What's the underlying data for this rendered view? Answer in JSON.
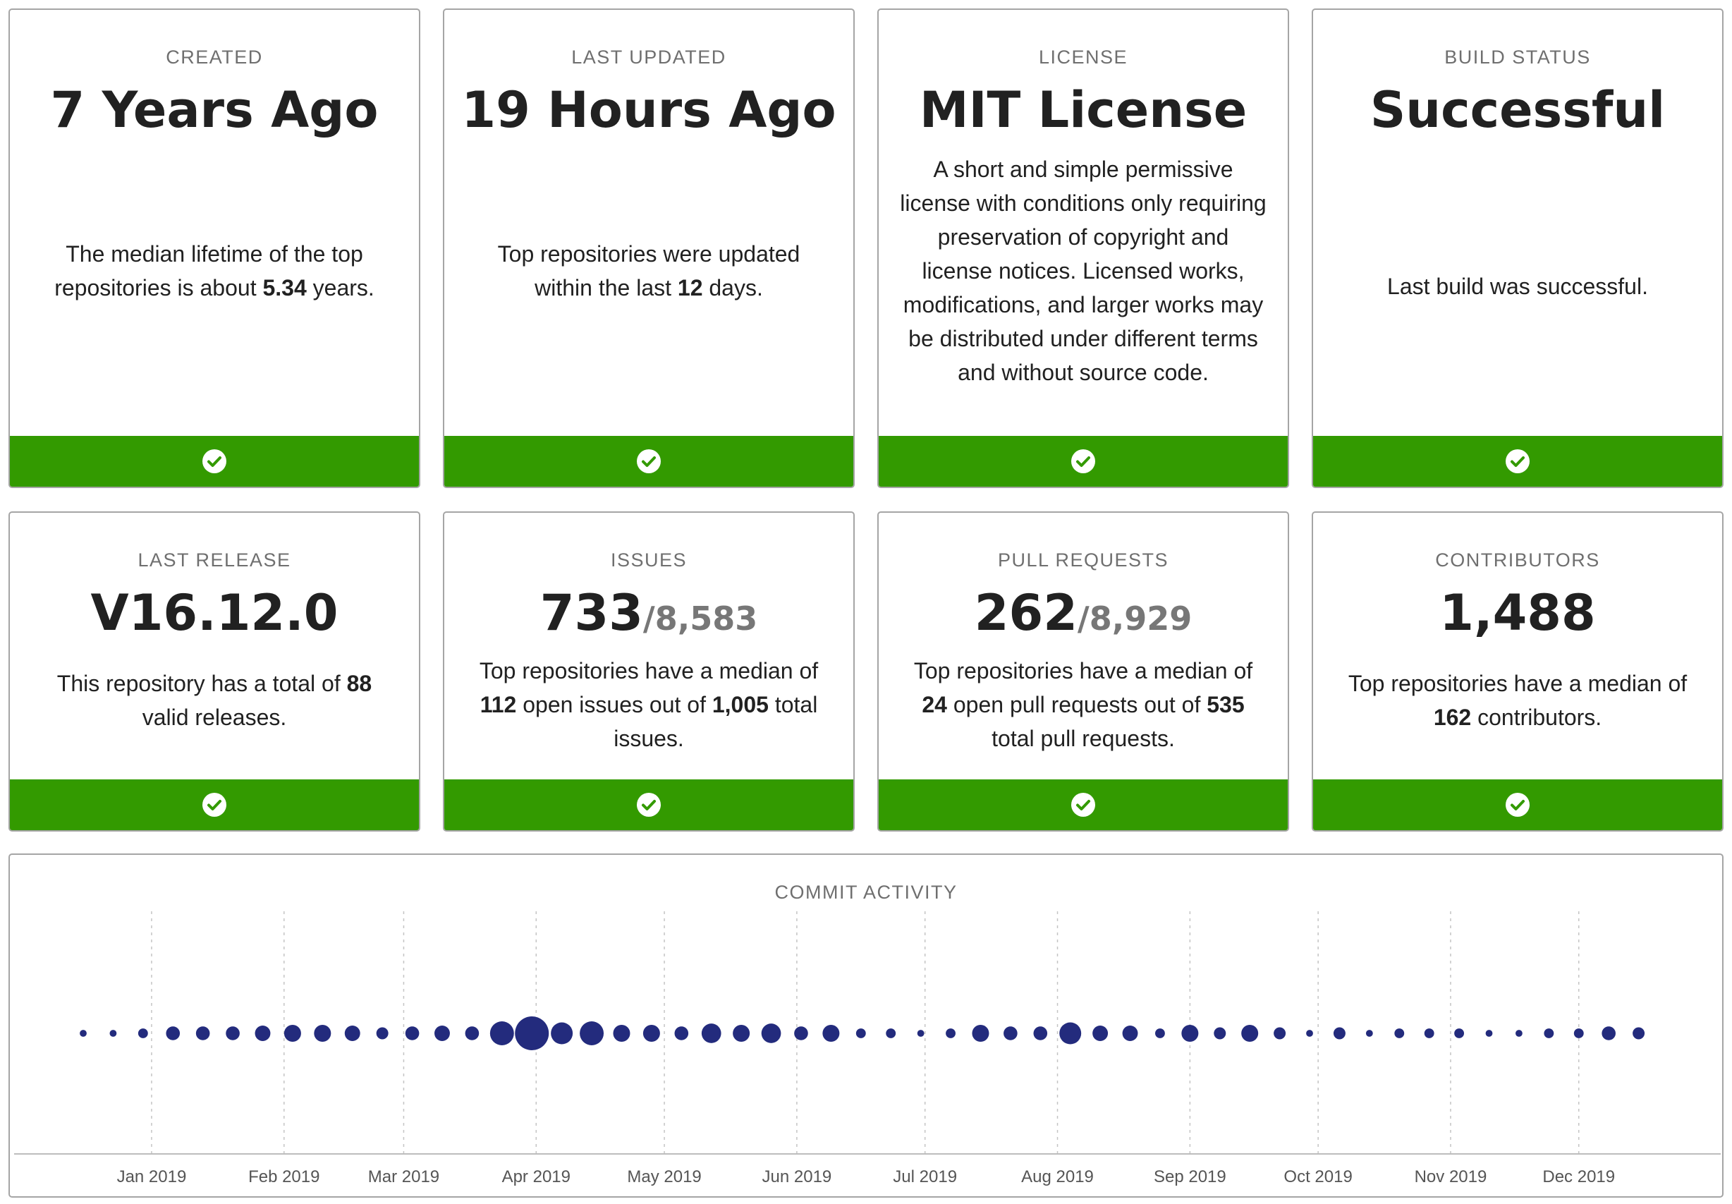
{
  "cards": [
    {
      "label": "CREATED",
      "value": "7 Years Ago",
      "desc": [
        "The median lifetime of the top repositories is about ",
        "5.34",
        " years."
      ],
      "status_icon": "check-circle-icon"
    },
    {
      "label": "LAST UPDATED",
      "value": "19 Hours Ago",
      "desc": [
        "Top repositories were updated within the last ",
        "12",
        " days."
      ],
      "status_icon": "check-circle-icon"
    },
    {
      "label": "LICENSE",
      "value": "MIT License",
      "desc": [
        "A short and simple permissive license with conditions only requiring preservation of copyright and license notices. Licensed works, modifications, and larger works may be distributed under different terms and without source code."
      ],
      "status_icon": "check-circle-icon"
    },
    {
      "label": "BUILD STATUS",
      "value": "Successful",
      "desc": [
        "Last build was successful."
      ],
      "status_icon": "check-circle-icon"
    },
    {
      "label": "LAST RELEASE",
      "value": "V16.12.0",
      "desc": [
        "This repository has a total of ",
        "88",
        " valid releases."
      ],
      "status_icon": "check-circle-icon"
    },
    {
      "label": "ISSUES",
      "value": "733",
      "total": "/8,583",
      "desc": [
        "Top repositories have a median of ",
        "112",
        " open issues out of ",
        "1,005",
        " total issues."
      ],
      "status_icon": "check-circle-icon"
    },
    {
      "label": "PULL REQUESTS",
      "value": "262",
      "total": "/8,929",
      "desc": [
        "Top repositories have a median of ",
        "24",
        " open pull requests out of ",
        "535",
        " total pull requests."
      ],
      "status_icon": "check-circle-icon"
    },
    {
      "label": "CONTRIBUTORS",
      "value": "1,488",
      "desc": [
        "Top repositories have a median of ",
        "162",
        " contributors."
      ],
      "status_icon": "check-circle-icon"
    }
  ],
  "colors": {
    "success": "#339a00",
    "dot": "#232b7d",
    "border": "#a5a5a5"
  },
  "commit_activity": {
    "title": "COMMIT ACTIVITY",
    "chart_data": {
      "type": "scatter",
      "title": "COMMIT ACTIVITY",
      "xlabel": "",
      "ylabel": "",
      "x_unit": "week",
      "x_start": "2018-12-16",
      "x_end": "2019-12-22",
      "grid": "vertical dashed at month starts",
      "tick_labels": [
        "Jan 2019",
        "Feb 2019",
        "Mar 2019",
        "Apr 2019",
        "May 2019",
        "Jun 2019",
        "Jul 2019",
        "Aug 2019",
        "Sep 2019",
        "Oct 2019",
        "Nov 2019",
        "Dec 2019"
      ],
      "tick_dates": [
        "2019-01-01",
        "2019-02-01",
        "2019-03-01",
        "2019-04-01",
        "2019-05-01",
        "2019-06-01",
        "2019-07-01",
        "2019-08-01",
        "2019-09-01",
        "2019-10-01",
        "2019-11-01",
        "2019-12-01"
      ],
      "point_size_encodes": "commits per week (relative)",
      "x": [
        "2018-12-16",
        "2018-12-23",
        "2018-12-30",
        "2019-01-06",
        "2019-01-13",
        "2019-01-20",
        "2019-01-27",
        "2019-02-03",
        "2019-02-10",
        "2019-02-17",
        "2019-02-24",
        "2019-03-03",
        "2019-03-10",
        "2019-03-17",
        "2019-03-24",
        "2019-03-31",
        "2019-04-07",
        "2019-04-14",
        "2019-04-21",
        "2019-04-28",
        "2019-05-05",
        "2019-05-12",
        "2019-05-19",
        "2019-05-26",
        "2019-06-02",
        "2019-06-09",
        "2019-06-16",
        "2019-06-23",
        "2019-06-30",
        "2019-07-07",
        "2019-07-14",
        "2019-07-21",
        "2019-07-28",
        "2019-08-04",
        "2019-08-11",
        "2019-08-18",
        "2019-08-25",
        "2019-09-01",
        "2019-09-08",
        "2019-09-15",
        "2019-09-22",
        "2019-09-29",
        "2019-10-06",
        "2019-10-13",
        "2019-10-20",
        "2019-10-27",
        "2019-11-03",
        "2019-11-10",
        "2019-11-17",
        "2019-11-24",
        "2019-12-01",
        "2019-12-08",
        "2019-12-15"
      ],
      "values": [
        1,
        1,
        2,
        4,
        4,
        4,
        5,
        6,
        6,
        5,
        3,
        4,
        5,
        4,
        12,
        24,
        10,
        12,
        6,
        6,
        4,
        8,
        6,
        8,
        4,
        6,
        2,
        2,
        1,
        2,
        6,
        4,
        4,
        10,
        5,
        5,
        2,
        6,
        3,
        6,
        3,
        1,
        3,
        1,
        2,
        2,
        2,
        1,
        1,
        2,
        2,
        4,
        3
      ]
    }
  }
}
